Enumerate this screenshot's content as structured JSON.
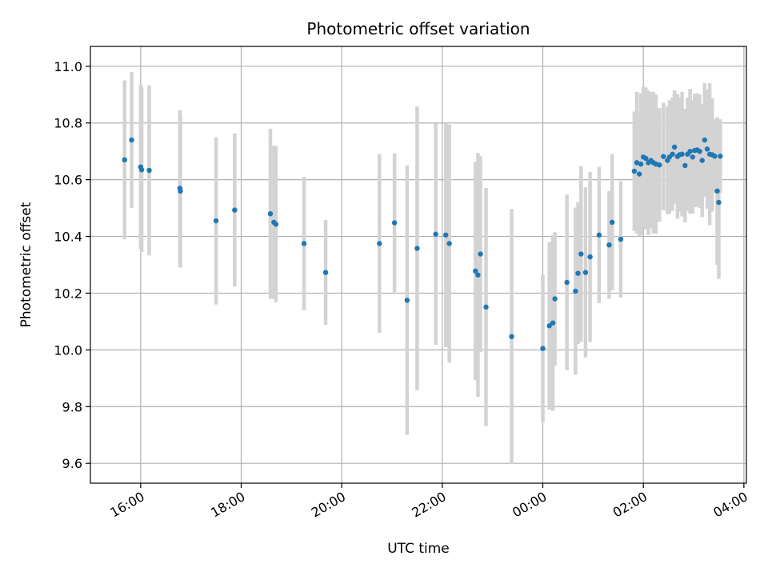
{
  "chart_data": {
    "type": "scatter",
    "title": "Photometric offset variation",
    "xlabel": "UTC time",
    "ylabel": "Photometric offset",
    "x_unit": "hours",
    "x_tick_values": [
      16,
      18,
      20,
      22,
      24,
      26,
      28
    ],
    "x_tick_labels": [
      "16:00",
      "18:00",
      "20:00",
      "22:00",
      "00:00",
      "02:00",
      "04:00"
    ],
    "xlim": [
      15.0,
      28.05
    ],
    "ylim": [
      9.53,
      11.07
    ],
    "y_tick_values": [
      9.6,
      9.8,
      10.0,
      10.2,
      10.4,
      10.6,
      10.8,
      11.0
    ],
    "y_tick_labels": [
      "9.6",
      "9.8",
      "10.0",
      "10.2",
      "10.4",
      "10.6",
      "10.8",
      "11.0"
    ],
    "grid": true,
    "colors": {
      "point": "#1f77b4",
      "errorbar": "#d3d3d3",
      "grid": "#b0b0b0"
    },
    "series": [
      {
        "x": [
          15.68,
          15.82,
          16.0,
          16.02,
          16.17,
          16.78,
          16.79,
          17.5,
          17.87,
          18.58,
          18.65,
          18.69,
          19.25,
          19.68,
          20.75,
          21.05,
          21.3,
          21.5,
          21.87,
          22.07,
          22.14,
          22.66,
          22.71,
          22.76,
          22.87,
          23.38,
          24.0,
          24.13,
          24.2,
          24.24,
          24.48,
          24.65,
          24.7,
          24.76,
          24.85,
          24.94,
          25.12,
          25.32,
          25.38,
          25.55,
          25.82,
          25.87,
          25.92,
          25.95,
          26.0,
          26.05,
          26.1,
          26.15,
          26.2,
          26.25,
          26.32,
          26.4,
          26.48,
          26.52,
          26.58,
          26.62,
          26.68,
          26.72,
          26.77,
          26.83,
          26.88,
          26.93,
          26.98,
          27.02,
          27.07,
          27.12,
          27.17,
          27.22,
          27.27,
          27.32,
          27.37,
          27.42,
          27.47,
          27.5,
          27.53
        ],
        "y": [
          10.67,
          10.74,
          10.645,
          10.635,
          10.633,
          10.57,
          10.56,
          10.455,
          10.493,
          10.48,
          10.45,
          10.443,
          10.375,
          10.273,
          10.375,
          10.448,
          10.175,
          10.358,
          10.408,
          10.405,
          10.375,
          10.278,
          10.264,
          10.338,
          10.151,
          10.047,
          10.005,
          10.085,
          10.095,
          10.18,
          10.238,
          10.207,
          10.27,
          10.338,
          10.273,
          10.328,
          10.405,
          10.37,
          10.45,
          10.39,
          10.63,
          10.66,
          10.62,
          10.655,
          10.68,
          10.675,
          10.66,
          10.668,
          10.66,
          10.655,
          10.652,
          10.682,
          10.668,
          10.68,
          10.69,
          10.715,
          10.682,
          10.688,
          10.69,
          10.65,
          10.69,
          10.7,
          10.68,
          10.703,
          10.705,
          10.7,
          10.668,
          10.74,
          10.708,
          10.69,
          10.688,
          10.683,
          10.56,
          10.52,
          10.683
        ],
        "yerr": [
          0.28,
          0.24,
          0.29,
          0.29,
          0.3,
          0.275,
          0.27,
          0.295,
          0.27,
          0.3,
          0.27,
          0.275,
          0.235,
          0.185,
          0.315,
          0.245,
          0.475,
          0.5,
          0.39,
          0.395,
          0.42,
          0.385,
          0.43,
          0.345,
          0.42,
          0.45,
          0.26,
          0.295,
          0.31,
          0.235,
          0.31,
          0.295,
          0.25,
          0.31,
          0.3,
          0.3,
          0.24,
          0.19,
          0.24,
          0.205,
          0.21,
          0.25,
          0.22,
          0.25,
          0.25,
          0.25,
          0.255,
          0.24,
          0.25,
          0.245,
          0.2,
          0.19,
          0.19,
          0.2,
          0.2,
          0.2,
          0.22,
          0.2,
          0.22,
          0.2,
          0.2,
          0.22,
          0.2,
          0.2,
          0.2,
          0.2,
          0.2,
          0.2,
          0.21,
          0.25,
          0.2,
          0.13,
          0.26,
          0.27,
          0.13
        ]
      }
    ]
  }
}
